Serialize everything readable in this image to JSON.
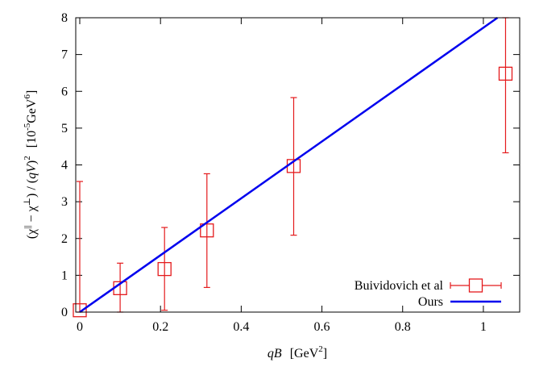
{
  "chart_data": {
    "type": "scatter",
    "xlabel": {
      "var": "qB",
      "unit_open": "[GeV",
      "unit_exp": "2",
      "unit_close": "]"
    },
    "ylabel": {
      "open": "(χ",
      "sup1": "||",
      "mid": " − χ",
      "sup2": "⊥",
      "mid2": ") / (",
      "var": "qV",
      "close": ")",
      "sup3": "2",
      "unit_open": "[10",
      "unit_exp1": "-5",
      "unit_mid": "GeV",
      "unit_exp2": "6",
      "unit_close": "]"
    },
    "xlim": [
      -0.01,
      1.09
    ],
    "ylim": [
      0,
      8
    ],
    "xticks": [
      0,
      0.2,
      0.4,
      0.6,
      0.8,
      1
    ],
    "xtick_labels": [
      "0",
      "0.2",
      "0.4",
      "0.6",
      "0.8",
      "1"
    ],
    "yticks": [
      0,
      1,
      2,
      3,
      4,
      5,
      6,
      7,
      8
    ],
    "ytick_labels": [
      "0",
      "1",
      "2",
      "3",
      "4",
      "5",
      "6",
      "7",
      "8"
    ],
    "grid": false,
    "legend_position": "bottom-right",
    "series": [
      {
        "name": "Buividovich et al",
        "kind": "points-with-errorbars",
        "marker": "open-square",
        "color": "#e41a1c",
        "points": [
          {
            "x": 0.0,
            "y": 0.05,
            "ylow": 0.0,
            "yhigh": 3.55
          },
          {
            "x": 0.1,
            "y": 0.65,
            "ylow": 0.0,
            "yhigh": 1.33
          },
          {
            "x": 0.21,
            "y": 1.17,
            "ylow": 0.05,
            "yhigh": 2.3
          },
          {
            "x": 0.315,
            "y": 2.22,
            "ylow": 0.67,
            "yhigh": 3.76
          },
          {
            "x": 0.53,
            "y": 3.97,
            "ylow": 2.09,
            "yhigh": 5.83
          },
          {
            "x": 1.055,
            "y": 6.48,
            "ylow": 4.33,
            "yhigh": 8.0
          }
        ]
      },
      {
        "name": "Ours",
        "kind": "line",
        "color": "#0000ee",
        "x": [
          0,
          1.035
        ],
        "y": [
          0,
          8
        ]
      }
    ]
  }
}
